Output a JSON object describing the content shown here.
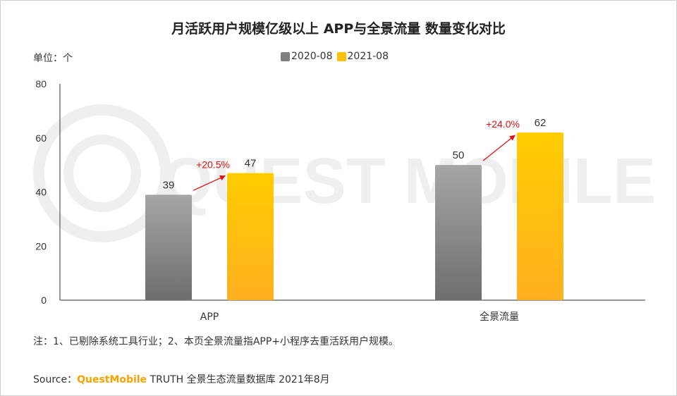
{
  "title": "月活跃用户规模亿级以上 APP与全景流量 数量变化对比",
  "unit_label": "单位：个",
  "note": "注：1、已剔除系统工具行业；2、本页全景流量指APP+小程序去重活跃用户规模。",
  "source": {
    "prefix": "Source：",
    "brand": "QuestMobile",
    "suffix": " TRUTH 全景生态流量数据库 2021年8月"
  },
  "watermark": "QUEST MOBILE",
  "colors": {
    "series_2020": "#7f7f7f",
    "series_2021": "#ffc000",
    "growth": "#e01010",
    "brand": "#f5a300"
  },
  "chart_data": {
    "type": "bar",
    "categories": [
      "APP",
      "全景流量"
    ],
    "series": [
      {
        "name": "2020-08",
        "values": [
          39,
          50
        ]
      },
      {
        "name": "2021-08",
        "values": [
          47,
          62
        ]
      }
    ],
    "growth_labels": [
      "+20.5%",
      "+24.0%"
    ],
    "ylim": [
      0,
      80
    ],
    "yticks": [
      0,
      20,
      40,
      60,
      80
    ],
    "legend_position": "top-center",
    "grid": false,
    "xlabel": "",
    "ylabel": ""
  }
}
